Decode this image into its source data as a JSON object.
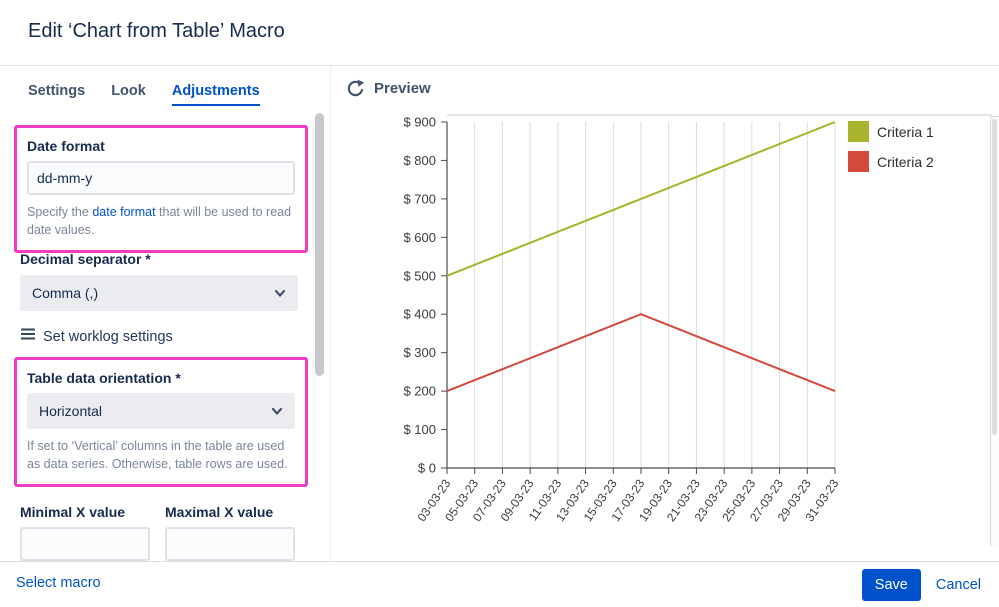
{
  "dialog": {
    "title": "Edit ‘Chart from Table’ Macro"
  },
  "tabs": [
    {
      "label": "Settings"
    },
    {
      "label": "Look"
    },
    {
      "label": "Adjustments"
    }
  ],
  "form": {
    "date_format": {
      "label": "Date format",
      "value": "dd-mm-y",
      "help_before": "Specify the ",
      "help_link": "date format",
      "help_after": " that will be used to read date values."
    },
    "decimal_separator": {
      "label": "Decimal separator *",
      "value": "Comma (,)"
    },
    "worklog_label": "Set worklog settings",
    "table_orientation": {
      "label": "Table data orientation *",
      "value": "Horizontal",
      "help": "If set to ‘Vertical’ columns in the table are used as data series. Otherwise, table rows are used."
    },
    "min_x_label": "Minimal X value",
    "max_x_label": "Maximal X value"
  },
  "preview": {
    "label": "Preview"
  },
  "footer": {
    "select_macro": "Select macro",
    "save": "Save",
    "cancel": "Cancel"
  },
  "colors": {
    "accent": "#0052CC",
    "highlight_border": "#ED3CC6",
    "series1": "#A6B32B",
    "series2": "#D5493C"
  },
  "chart_data": {
    "type": "line",
    "x": [
      "03-03-23",
      "05-03-23",
      "07-03-23",
      "09-03-23",
      "11-03-23",
      "13-03-23",
      "15-03-23",
      "17-03-23",
      "19-03-23",
      "21-03-23",
      "23-03-23",
      "25-03-23",
      "27-03-23",
      "29-03-23",
      "31-03-23"
    ],
    "series": [
      {
        "name": "Criteria 1",
        "color": "#A6B32B",
        "values": [
          500,
          528.6,
          557.1,
          585.7,
          614.3,
          642.9,
          671.4,
          700,
          728.6,
          757.1,
          785.7,
          814.3,
          842.9,
          871.4,
          900
        ]
      },
      {
        "name": "Criteria 2",
        "color": "#D5493C",
        "values": [
          200,
          228.6,
          257.1,
          285.7,
          314.3,
          342.9,
          371.4,
          400,
          371.4,
          342.9,
          314.3,
          285.7,
          257.1,
          228.6,
          200
        ]
      }
    ],
    "title": "",
    "xlabel": "",
    "ylabel": "",
    "ylabel_prefix": "$ ",
    "ylim": [
      0,
      900
    ],
    "ytick_step": 100,
    "grid": "vertical",
    "legend_position": "top-right"
  }
}
